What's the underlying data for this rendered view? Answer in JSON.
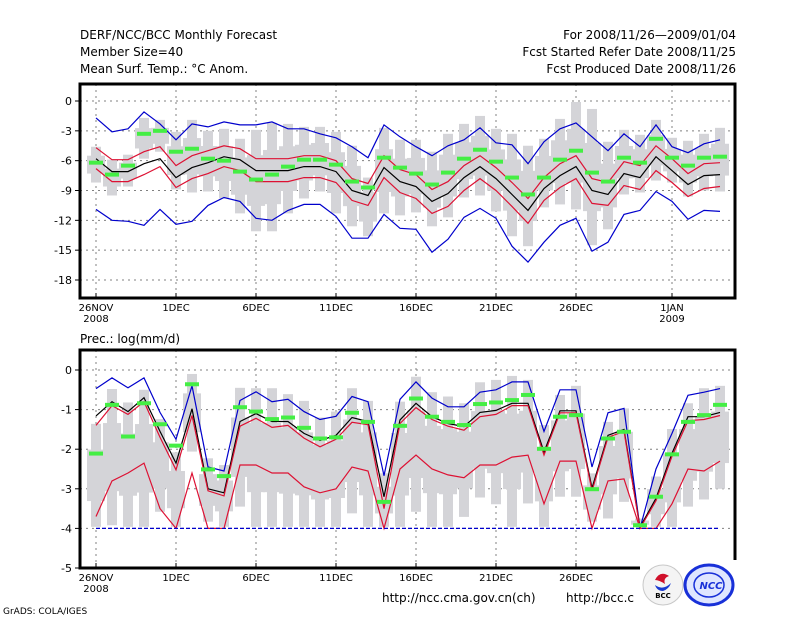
{
  "header": {
    "title": "DERF/NCC/BCC Monthly Forecast",
    "member_size": "Member Size=40",
    "variable_top": "Mean Surf. Temp.: °C Anom.",
    "period": "For 2008/11/26—2009/01/04",
    "started": "Fcst Started Refer Date 2008/11/25",
    "produced": "Fcst Produced Date 2008/11/26"
  },
  "footer": {
    "grads": "GrADS: COLA/IGES",
    "url1": "http://ncc.cma.gov.cn(ch)",
    "url2": "http://bcc.c",
    "logo_bcc": "BCC",
    "logo_ncc": "NCC"
  },
  "colors": {
    "envelope": "#0000cc",
    "spread": "#dd1133",
    "mean": "#000000",
    "marker": "#44ee44",
    "bar": "#d4d4d8",
    "grid": "#808080"
  },
  "chart_data": [
    {
      "type": "line",
      "title": "Mean Surf. Temp.: °C Anom.",
      "xlabel": "",
      "ylabel": "",
      "ylim": [
        -20,
        2
      ],
      "yticks": [
        0,
        -3,
        -6,
        -9,
        -12,
        -15,
        -18
      ],
      "ytick_labels": [
        "0",
        "-3",
        "-6",
        "-9",
        "-12",
        "-15",
        "-18"
      ],
      "xticks": [
        {
          "day": 0,
          "label": "26NOV",
          "sub": "2008"
        },
        {
          "day": 5,
          "label": "1DEC",
          "sub": ""
        },
        {
          "day": 10,
          "label": "6DEC",
          "sub": ""
        },
        {
          "day": 15,
          "label": "11DEC",
          "sub": ""
        },
        {
          "day": 20,
          "label": "16DEC",
          "sub": ""
        },
        {
          "day": 25,
          "label": "21DEC",
          "sub": ""
        },
        {
          "day": 30,
          "label": "26DEC",
          "sub": ""
        },
        {
          "day": 36,
          "label": "1JAN",
          "sub": "2009"
        }
      ],
      "grid": true,
      "days": 40,
      "series": [
        {
          "name": "ensemble-max",
          "style": "blue",
          "values": [
            -1.7,
            -3.1,
            -2.8,
            -1.1,
            -2.3,
            -3.9,
            -2.3,
            -2.6,
            -2.1,
            -2.4,
            -2.4,
            -2.1,
            -2.8,
            -2.8,
            -3.3,
            -3.7,
            -4.6,
            -5.7,
            -2.4,
            -3.6,
            -4.6,
            -5.5,
            -4.5,
            -3.9,
            -2.7,
            -4.2,
            -4.4,
            -6.3,
            -4.1,
            -2.8,
            -2.2,
            -3.6,
            -5.0,
            -3.3,
            -4.6,
            -2.4,
            -4.6,
            -5.2,
            -4.3,
            -3.9
          ]
        },
        {
          "name": "mean-plus-sd",
          "style": "red",
          "values": [
            -4.7,
            -5.9,
            -5.9,
            -5.1,
            -4.6,
            -6.5,
            -5.5,
            -5.0,
            -4.5,
            -4.8,
            -5.8,
            -5.8,
            -5.8,
            -5.5,
            -5.5,
            -6.0,
            -7.8,
            -8.3,
            -5.5,
            -6.9,
            -7.4,
            -8.9,
            -8.1,
            -6.5,
            -5.5,
            -6.7,
            -8.2,
            -9.8,
            -7.7,
            -6.3,
            -5.5,
            -7.8,
            -8.2,
            -6.1,
            -6.5,
            -4.5,
            -5.8,
            -7.3,
            -6.3,
            -6.2
          ]
        },
        {
          "name": "ensemble-mean",
          "style": "black",
          "values": [
            -5.8,
            -7.1,
            -7.1,
            -6.3,
            -5.8,
            -7.7,
            -6.7,
            -6.2,
            -5.6,
            -5.9,
            -7.0,
            -7.0,
            -7.0,
            -6.6,
            -6.6,
            -7.1,
            -9.0,
            -9.5,
            -6.7,
            -8.1,
            -8.6,
            -10.1,
            -9.3,
            -7.7,
            -6.6,
            -7.8,
            -9.4,
            -11.0,
            -8.8,
            -7.5,
            -6.6,
            -9.0,
            -9.4,
            -7.3,
            -7.7,
            -5.6,
            -7.0,
            -8.4,
            -7.5,
            -7.4
          ]
        },
        {
          "name": "mean-minus-sd",
          "style": "red",
          "values": [
            -6.8,
            -8.1,
            -8.1,
            -7.4,
            -6.6,
            -8.7,
            -7.8,
            -7.3,
            -6.6,
            -7.0,
            -8.1,
            -8.1,
            -8.1,
            -7.7,
            -7.7,
            -8.2,
            -10.0,
            -10.5,
            -7.7,
            -9.2,
            -9.8,
            -11.3,
            -10.6,
            -9.0,
            -7.8,
            -9.0,
            -10.6,
            -12.3,
            -10.0,
            -8.7,
            -7.8,
            -10.3,
            -10.5,
            -8.5,
            -8.9,
            -7.0,
            -8.2,
            -9.6,
            -8.8,
            -8.6
          ]
        },
        {
          "name": "ensemble-min",
          "style": "blue",
          "values": [
            -10.9,
            -12.0,
            -12.1,
            -12.5,
            -10.9,
            -12.4,
            -12.1,
            -10.5,
            -9.7,
            -10.1,
            -11.8,
            -12.0,
            -11.0,
            -10.4,
            -10.4,
            -11.6,
            -13.8,
            -13.8,
            -11.4,
            -12.8,
            -12.9,
            -15.2,
            -13.9,
            -11.7,
            -10.8,
            -11.8,
            -14.6,
            -16.2,
            -14.2,
            -12.5,
            -11.8,
            -15.1,
            -14.2,
            -11.4,
            -11.0,
            -9.1,
            -10.1,
            -11.9,
            -11.0,
            -11.1
          ]
        }
      ],
      "markers": {
        "name": "observed-or-median",
        "values": [
          -6.2,
          -7.4,
          -6.5,
          -3.3,
          -3.0,
          -5.1,
          -4.8,
          -5.8,
          -6.0,
          -7.1,
          -7.9,
          -7.4,
          -6.6,
          -5.9,
          -5.9,
          -6.4,
          -8.1,
          -8.7,
          -5.7,
          -6.7,
          -7.3,
          -8.4,
          -7.2,
          -5.8,
          -4.9,
          -6.1,
          -7.7,
          -9.4,
          -7.7,
          -5.9,
          -5.0,
          -7.2,
          -8.1,
          -5.7,
          -6.2,
          -3.8,
          -5.7,
          -6.5,
          -5.7,
          -5.6
        ]
      },
      "bars": {
        "max": [
          -4.6,
          -5.9,
          -5.4,
          -1.7,
          -1.9,
          -3.1,
          -1.9,
          -3.0,
          -2.8,
          -3.8,
          -2.9,
          -2.2,
          -2.3,
          -2.6,
          -2.6,
          -3.1,
          -4.5,
          -7.7,
          -2.7,
          -3.9,
          -3.9,
          -5.1,
          -3.3,
          -2.3,
          -1.5,
          -2.8,
          -3.3,
          -4.5,
          -3.8,
          -1.8,
          -0.1,
          -0.8,
          -4.1,
          -2.9,
          -3.4,
          -1.9,
          -3.7,
          -4.0,
          -3.3,
          -2.7
        ],
        "min": [
          -8.2,
          -9.5,
          -8.6,
          -5.8,
          -5.1,
          -8.9,
          -9.2,
          -9.1,
          -9.8,
          -11.3,
          -13.1,
          -13.1,
          -11.3,
          -9.8,
          -9.1,
          -11.3,
          -12.6,
          -13.6,
          -11.3,
          -11.5,
          -11.2,
          -12.6,
          -11.7,
          -9.7,
          -9.5,
          -11.1,
          -13.6,
          -14.6,
          -10.7,
          -10.4,
          -10.9,
          -14.5,
          -12.9,
          -9.4,
          -9.2,
          -8.0,
          -8.2,
          -9.6,
          -9.0,
          -9.1
        ]
      }
    },
    {
      "type": "line",
      "title": "Prec.: log(mm/d)",
      "xlabel": "",
      "ylabel": "",
      "ylim": [
        -5,
        0.5
      ],
      "yticks": [
        0,
        -1,
        -2,
        -3,
        -4,
        -5
      ],
      "ytick_labels": [
        "0",
        "-1",
        "-2",
        "-3",
        "-4",
        "-5"
      ],
      "xticks": [
        {
          "day": 0,
          "label": "26NOV",
          "sub": "2008"
        },
        {
          "day": 5,
          "label": "1DEC",
          "sub": ""
        },
        {
          "day": 10,
          "label": "6DEC",
          "sub": ""
        },
        {
          "day": 15,
          "label": "11DEC",
          "sub": ""
        },
        {
          "day": 20,
          "label": "16DEC",
          "sub": ""
        },
        {
          "day": 25,
          "label": "21DEC",
          "sub": ""
        },
        {
          "day": 30,
          "label": "26DEC",
          "sub": ""
        }
      ],
      "grid": true,
      "days": 40,
      "series": [
        {
          "name": "ensemble-max",
          "style": "blue",
          "values": [
            -0.47,
            -0.2,
            -0.45,
            -0.2,
            -1.07,
            -1.75,
            -0.4,
            -2.45,
            -2.55,
            -0.77,
            -0.55,
            -0.8,
            -0.74,
            -1.05,
            -1.25,
            -1.17,
            -0.67,
            -0.8,
            -2.67,
            -0.74,
            -0.3,
            -0.71,
            -0.93,
            -0.93,
            -0.56,
            -0.5,
            -0.3,
            -0.3,
            -1.55,
            -0.5,
            -0.5,
            -2.45,
            -1.08,
            -0.97,
            -4.0,
            -2.5,
            -1.6,
            -0.64,
            -0.56,
            -0.47
          ]
        },
        {
          "name": "ensemble-mean",
          "style": "black",
          "values": [
            -1.16,
            -0.8,
            -1.05,
            -0.7,
            -1.55,
            -2.35,
            -0.98,
            -3.0,
            -3.1,
            -1.3,
            -1.1,
            -1.3,
            -1.3,
            -1.6,
            -1.78,
            -1.65,
            -1.2,
            -1.3,
            -3.2,
            -1.26,
            -0.84,
            -1.18,
            -1.35,
            -1.43,
            -1.07,
            -1.02,
            -0.84,
            -0.84,
            -2.07,
            -1.03,
            -1.03,
            -2.98,
            -1.65,
            -1.5,
            -3.97,
            -3.24,
            -2.1,
            -1.18,
            -1.18,
            -1.07
          ]
        },
        {
          "name": "mean-plus-sd",
          "style": "red",
          "values": [
            -1.4,
            -0.9,
            -1.12,
            -0.8,
            -1.7,
            -2.52,
            -1.15,
            -3.05,
            -3.18,
            -1.42,
            -1.22,
            -1.45,
            -1.4,
            -1.72,
            -1.94,
            -1.75,
            -1.32,
            -1.38,
            -3.5,
            -1.35,
            -0.95,
            -1.25,
            -1.42,
            -1.52,
            -1.18,
            -1.12,
            -0.9,
            -0.9,
            -2.15,
            -1.08,
            -1.08,
            -3.05,
            -1.7,
            -1.55,
            -4.0,
            -3.3,
            -2.18,
            -1.28,
            -1.25,
            -1.15
          ]
        },
        {
          "name": "mean-minus-sd",
          "style": "red",
          "values": [
            -3.7,
            -2.8,
            -2.6,
            -2.35,
            -3.5,
            -4.0,
            -2.6,
            -4.0,
            -4.0,
            -2.4,
            -2.4,
            -2.6,
            -2.6,
            -2.95,
            -3.1,
            -3.0,
            -2.45,
            -2.55,
            -4.0,
            -2.5,
            -2.15,
            -2.5,
            -2.65,
            -2.72,
            -2.4,
            -2.4,
            -2.2,
            -2.15,
            -3.38,
            -2.3,
            -2.3,
            -4.0,
            -2.8,
            -2.75,
            -4.0,
            -4.0,
            -3.38,
            -2.5,
            -2.55,
            -2.3
          ]
        },
        {
          "name": "ensemble-min",
          "style": "blue-dashed",
          "values": [
            -4,
            -4,
            -4,
            -4,
            -4,
            -4,
            -4,
            -4,
            -4,
            -4,
            -4,
            -4,
            -4,
            -4,
            -4,
            -4,
            -4,
            -4,
            -4,
            -4,
            -4,
            -4,
            -4,
            -4,
            -4,
            -4,
            -4,
            -4,
            -4,
            -4,
            -4,
            -4,
            -4,
            -4,
            -4,
            -4,
            -4,
            -4,
            -4,
            -4
          ]
        }
      ],
      "markers": {
        "name": "observed-or-median",
        "values": [
          -2.11,
          -0.88,
          -1.68,
          -0.84,
          -1.37,
          -1.91,
          -0.36,
          -2.51,
          -2.68,
          -0.94,
          -1.05,
          -1.24,
          -1.2,
          -1.46,
          -1.73,
          -1.7,
          -1.08,
          -1.31,
          -3.33,
          -1.41,
          -0.72,
          -1.18,
          -1.31,
          -1.39,
          -0.86,
          -0.82,
          -0.76,
          -0.63,
          -1.99,
          -1.18,
          -1.14,
          -3.01,
          -1.73,
          -1.56,
          -3.92,
          -3.2,
          -2.13,
          -1.31,
          -1.14,
          -0.88
        ]
      },
      "bars": {
        "max": [
          -1.36,
          -0.48,
          -0.82,
          -0.5,
          -1.24,
          -2.08,
          -0.1,
          -2.23,
          -2.4,
          -0.45,
          -0.46,
          -0.46,
          -0.61,
          -0.78,
          -1.2,
          -1.05,
          -0.46,
          -0.78,
          -2.61,
          -0.8,
          -0.17,
          -0.56,
          -0.67,
          -0.84,
          -0.31,
          -0.25,
          -0.15,
          -0.25,
          -1.39,
          -0.63,
          -0.4,
          -2.61,
          -1.31,
          -0.97,
          -3.75,
          -2.69,
          -1.49,
          -0.84,
          -0.46,
          -0.4
        ],
        "min": [
          -3.96,
          -3.92,
          -3.96,
          -3.96,
          -3.58,
          -3.96,
          -2.06,
          -3.83,
          -3.96,
          -3.45,
          -3.96,
          -3.96,
          -3.96,
          -3.96,
          -3.96,
          -3.96,
          -3.62,
          -3.96,
          -3.96,
          -3.96,
          -3.58,
          -3.96,
          -3.96,
          -3.71,
          -3.22,
          -3.39,
          -3.96,
          -3.37,
          -3.96,
          -3.2,
          -3.2,
          -3.83,
          -3.75,
          -3.33,
          -3.96,
          -3.96,
          -3.96,
          -3.45,
          -3.27,
          -3.0
        ]
      }
    }
  ]
}
